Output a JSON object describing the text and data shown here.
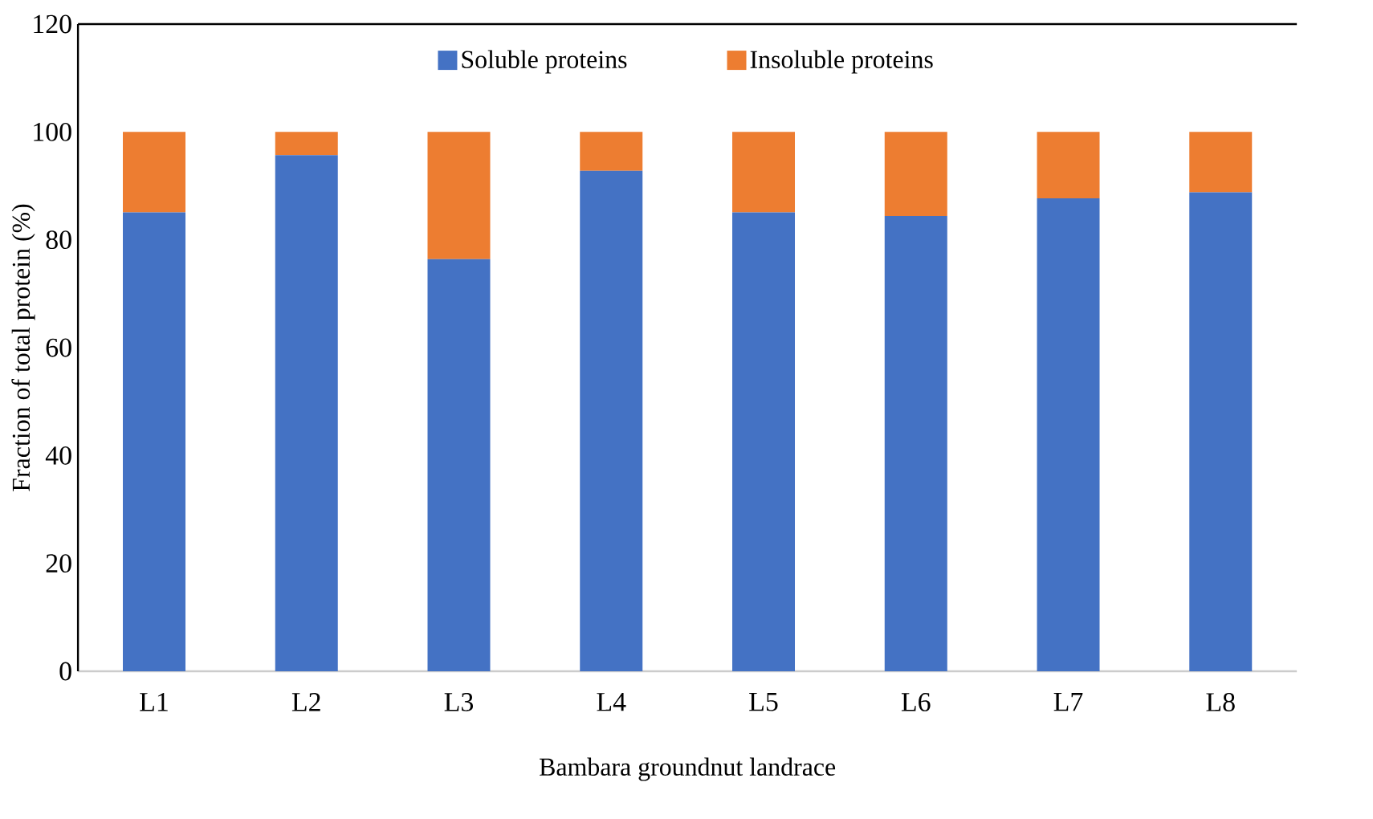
{
  "chart_data": {
    "type": "bar",
    "stacked": true,
    "xlabel": "Bambara groundnut landrace",
    "ylabel": "Fraction of total protein (%)",
    "categories": [
      "L1",
      "L2",
      "L3",
      "L4",
      "L5",
      "L6",
      "L7",
      "L8"
    ],
    "series": [
      {
        "name": "Soluble proteins",
        "color": "#4472c4",
        "values": [
          85.1,
          95.7,
          76.4,
          92.8,
          85.1,
          84.4,
          87.7,
          88.8
        ]
      },
      {
        "name": "Insoluble proteins",
        "color": "#ed7d31",
        "values": [
          14.9,
          4.3,
          23.6,
          7.2,
          14.9,
          15.6,
          12.3,
          11.2
        ]
      }
    ],
    "ylim": [
      0,
      120
    ],
    "yticks": [
      0,
      20,
      40,
      60,
      80,
      100,
      120
    ],
    "grid": false,
    "legend": "top"
  }
}
